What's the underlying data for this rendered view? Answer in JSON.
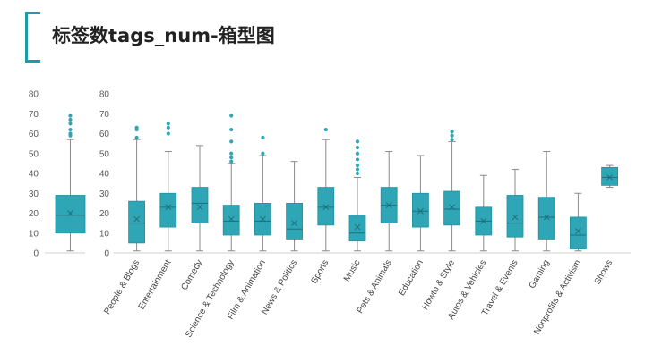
{
  "page": {
    "title": "标签数tags_num-箱型图",
    "accent_color": "#1f9aa8"
  },
  "chart_data": [
    {
      "type": "box",
      "ylim": [
        0,
        80
      ],
      "yticks": [
        0,
        10,
        20,
        30,
        40,
        50,
        60,
        70,
        80
      ],
      "color": "#2fa6b5",
      "categories": [
        ""
      ],
      "boxes": [
        {
          "min": 1,
          "q1": 10,
          "median": 19,
          "q3": 29,
          "max": 57,
          "mean": 20,
          "outliers": [
            59,
            60,
            62,
            65,
            67,
            69
          ]
        }
      ]
    },
    {
      "type": "box",
      "ylim": [
        0,
        80
      ],
      "yticks": [
        0,
        10,
        20,
        30,
        40,
        50,
        60,
        70,
        80
      ],
      "color": "#2fa6b5",
      "categories": [
        "People & Blogs",
        "Entertainment",
        "Comedy",
        "Science & Technology",
        "Film & Animation",
        "News & Politics",
        "Sports",
        "Music",
        "Pets & Animals",
        "Education",
        "Howto & Style",
        "Autos & Vehicles",
        "Travel & Events",
        "Gaming",
        "Nonprofits & Activism",
        "Shows"
      ],
      "boxes": [
        {
          "min": 1,
          "q1": 5,
          "median": 15,
          "q3": 26,
          "max": 57,
          "mean": 17,
          "outliers": [
            58,
            62,
            63
          ]
        },
        {
          "min": 1,
          "q1": 13,
          "median": 23,
          "q3": 30,
          "max": 51,
          "mean": 23,
          "outliers": [
            60,
            63,
            65
          ]
        },
        {
          "min": 1,
          "q1": 15,
          "median": 25,
          "q3": 33,
          "max": 54,
          "mean": 23,
          "outliers": []
        },
        {
          "min": 1,
          "q1": 9,
          "median": 16,
          "q3": 24,
          "max": 45,
          "mean": 17,
          "outliers": [
            46,
            48,
            50,
            56,
            62,
            69
          ]
        },
        {
          "min": 1,
          "q1": 9,
          "median": 16,
          "q3": 25,
          "max": 49,
          "mean": 17,
          "outliers": [
            50,
            58
          ]
        },
        {
          "min": 1,
          "q1": 7,
          "median": 12,
          "q3": 25,
          "max": 46,
          "mean": 15,
          "outliers": []
        },
        {
          "min": 1,
          "q1": 14,
          "median": 23,
          "q3": 33,
          "max": 57,
          "mean": 23,
          "outliers": [
            62
          ]
        },
        {
          "min": 1,
          "q1": 6,
          "median": 10,
          "q3": 19,
          "max": 38,
          "mean": 13,
          "outliers": [
            40,
            42,
            44,
            47,
            50,
            53,
            56
          ]
        },
        {
          "min": 1,
          "q1": 15,
          "median": 24,
          "q3": 33,
          "max": 51,
          "mean": 24,
          "outliers": []
        },
        {
          "min": 1,
          "q1": 13,
          "median": 21,
          "q3": 30,
          "max": 49,
          "mean": 21,
          "outliers": []
        },
        {
          "min": 1,
          "q1": 14,
          "median": 22,
          "q3": 31,
          "max": 56,
          "mean": 23,
          "outliers": [
            57,
            59,
            61
          ]
        },
        {
          "min": 1,
          "q1": 9,
          "median": 16,
          "q3": 23,
          "max": 39,
          "mean": 16,
          "outliers": []
        },
        {
          "min": 1,
          "q1": 8,
          "median": 15,
          "q3": 29,
          "max": 42,
          "mean": 18,
          "outliers": []
        },
        {
          "min": 1,
          "q1": 7,
          "median": 18,
          "q3": 28,
          "max": 51,
          "mean": 18,
          "outliers": []
        },
        {
          "min": 1,
          "q1": 2,
          "median": 9,
          "q3": 18,
          "max": 30,
          "mean": 11,
          "outliers": []
        },
        {
          "min": 33,
          "q1": 34,
          "median": 38,
          "q3": 43,
          "max": 44,
          "mean": 38,
          "outliers": []
        }
      ]
    }
  ]
}
